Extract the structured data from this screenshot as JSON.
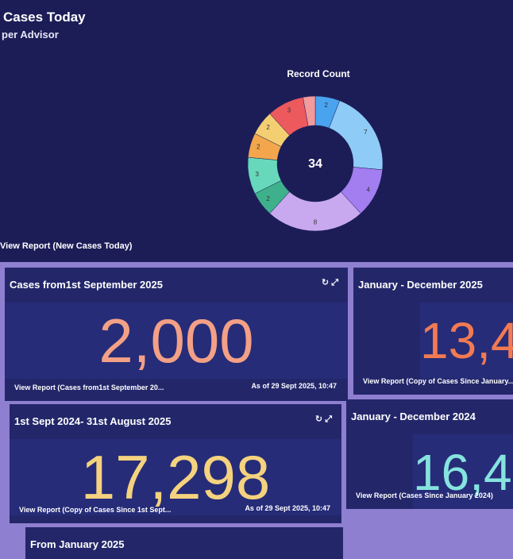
{
  "panel": {
    "title": "Cases Today",
    "subtitle": "per Advisor",
    "link": "View Report (New Cases Today)"
  },
  "chart_data": {
    "type": "pie",
    "title": "Record Count",
    "total": 34,
    "values": [
      2,
      7,
      4,
      8,
      2,
      3,
      2,
      2,
      3,
      1
    ],
    "colors": [
      "#4aa3ee",
      "#8ecbf6",
      "#a27ef0",
      "#c8a9f0",
      "#3fb08c",
      "#67d8bb",
      "#f3a64c",
      "#f4cf72",
      "#ec5a5e",
      "#f39a9c"
    ]
  },
  "cards": [
    {
      "title": "Cases from1st September 2025",
      "value": "2,000",
      "value_color": "#f3a086",
      "link": "View Report (Cases from1st September 20...",
      "as_of": "As of 29 Sept 2025, 10:47"
    },
    {
      "title": "January - December 2025",
      "value": "13,4",
      "value_color": "#f27a52",
      "link": "View Report (Copy of Cases Since January..."
    },
    {
      "title": "1st Sept 2024- 31st August 2025",
      "value": "17,298",
      "value_color": "#f5d27e",
      "link": "View Report (Copy of Cases Since 1st Sept...",
      "as_of": "As of 29 Sept 2025, 10:47"
    },
    {
      "title": "January - December 2024",
      "value": "16,4",
      "value_color": "#86e3df",
      "link": "View Report (Cases Since January 2024)"
    },
    {
      "title": "From January 2025"
    }
  ]
}
